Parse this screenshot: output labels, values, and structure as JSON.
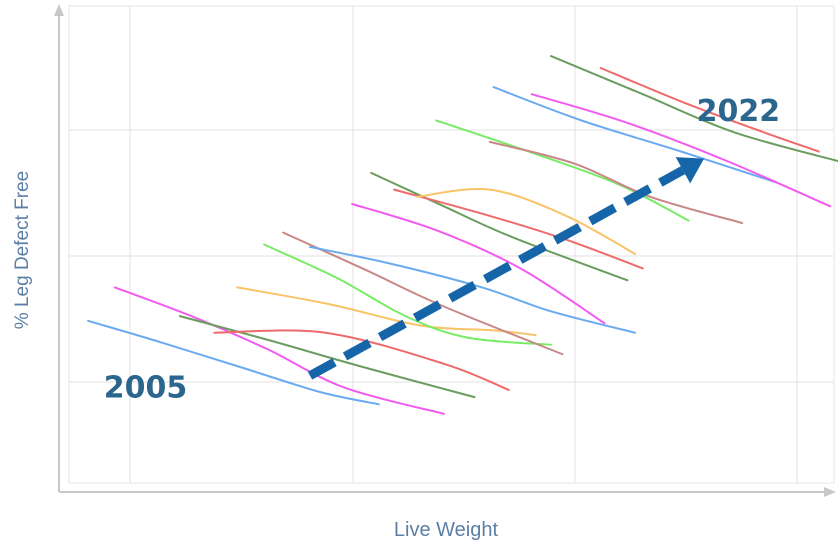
{
  "chart_data": {
    "type": "line",
    "title": "",
    "xlabel": "Live Weight",
    "ylabel": "% Leg Defect Free",
    "xlim": [
      0,
      10
    ],
    "ylim": [
      0,
      10
    ],
    "grid": true,
    "legend": "none",
    "annotations": [
      {
        "name": "start-year",
        "text": "2005",
        "x": 1.0,
        "y": 2.0
      },
      {
        "name": "end-year",
        "text": "2022",
        "x": 8.75,
        "y": 7.8
      }
    ],
    "trend_arrow": {
      "from": [
        3.15,
        2.25
      ],
      "to": [
        8.3,
        6.8
      ],
      "color": "#1565a8"
    },
    "series": [
      {
        "color": "#6aaaf0",
        "points": [
          [
            0.25,
            3.4
          ],
          [
            1.2,
            2.95
          ],
          [
            2.3,
            2.4
          ],
          [
            3.3,
            1.9
          ],
          [
            4.05,
            1.65
          ]
        ]
      },
      {
        "color": "#f25af0",
        "points": [
          [
            0.6,
            4.1
          ],
          [
            1.6,
            3.5
          ],
          [
            2.6,
            2.8
          ],
          [
            3.6,
            2.0
          ],
          [
            4.9,
            1.45
          ]
        ]
      },
      {
        "color": "#6a9d5f",
        "points": [
          [
            1.45,
            3.5
          ],
          [
            2.6,
            3.0
          ],
          [
            3.8,
            2.45
          ],
          [
            5.3,
            1.8
          ]
        ]
      },
      {
        "color": "#ef6a6a",
        "points": [
          [
            1.9,
            3.15
          ],
          [
            3.35,
            3.15
          ],
          [
            4.9,
            2.5
          ],
          [
            5.75,
            1.95
          ]
        ]
      },
      {
        "color": "#f8c468",
        "points": [
          [
            2.2,
            4.1
          ],
          [
            3.4,
            3.75
          ],
          [
            4.6,
            3.3
          ],
          [
            5.55,
            3.2
          ],
          [
            6.1,
            3.1
          ]
        ]
      },
      {
        "color": "#78ec64",
        "points": [
          [
            2.55,
            5.0
          ],
          [
            3.5,
            4.3
          ],
          [
            4.4,
            3.5
          ],
          [
            5.2,
            3.05
          ],
          [
            6.3,
            2.9
          ]
        ]
      },
      {
        "color": "#c88888",
        "points": [
          [
            2.8,
            5.25
          ],
          [
            3.9,
            4.45
          ],
          [
            4.9,
            3.7
          ],
          [
            6.45,
            2.7
          ]
        ]
      },
      {
        "color": "#6aaaf0",
        "points": [
          [
            3.15,
            4.95
          ],
          [
            4.2,
            4.6
          ],
          [
            5.4,
            4.1
          ],
          [
            6.3,
            3.6
          ],
          [
            7.4,
            3.15
          ]
        ]
      },
      {
        "color": "#f25af0",
        "points": [
          [
            3.7,
            5.85
          ],
          [
            4.8,
            5.3
          ],
          [
            5.9,
            4.5
          ],
          [
            7.0,
            3.35
          ]
        ]
      },
      {
        "color": "#6a9d5f",
        "points": [
          [
            3.95,
            6.5
          ],
          [
            4.9,
            5.8
          ],
          [
            5.8,
            5.15
          ],
          [
            7.3,
            4.25
          ]
        ]
      },
      {
        "color": "#ef6a6a",
        "points": [
          [
            4.25,
            6.15
          ],
          [
            5.5,
            5.6
          ],
          [
            6.5,
            5.1
          ],
          [
            7.5,
            4.5
          ]
        ]
      },
      {
        "color": "#f8c468",
        "points": [
          [
            4.55,
            6.0
          ],
          [
            5.5,
            6.15
          ],
          [
            6.5,
            5.6
          ],
          [
            7.4,
            4.8
          ]
        ]
      },
      {
        "color": "#78ec64",
        "points": [
          [
            4.8,
            7.6
          ],
          [
            6.1,
            6.9
          ],
          [
            7.2,
            6.25
          ],
          [
            8.1,
            5.5
          ]
        ]
      },
      {
        "color": "#c88888",
        "points": [
          [
            5.5,
            7.15
          ],
          [
            6.6,
            6.7
          ],
          [
            7.6,
            6.0
          ],
          [
            8.8,
            5.45
          ]
        ]
      },
      {
        "color": "#6aaaf0",
        "points": [
          [
            5.55,
            8.3
          ],
          [
            6.7,
            7.6
          ],
          [
            8.0,
            6.95
          ],
          [
            9.25,
            6.3
          ]
        ]
      },
      {
        "color": "#f25af0",
        "points": [
          [
            6.05,
            8.15
          ],
          [
            7.3,
            7.55
          ],
          [
            8.6,
            6.75
          ],
          [
            9.95,
            5.8
          ]
        ]
      },
      {
        "color": "#6a9d5f",
        "points": [
          [
            6.3,
            8.95
          ],
          [
            7.5,
            8.15
          ],
          [
            8.7,
            7.35
          ],
          [
            10.05,
            6.75
          ]
        ]
      },
      {
        "color": "#ef6a6a",
        "points": [
          [
            6.95,
            8.7
          ],
          [
            8.0,
            8.0
          ],
          [
            9.0,
            7.4
          ],
          [
            9.8,
            6.95
          ]
        ]
      }
    ]
  }
}
